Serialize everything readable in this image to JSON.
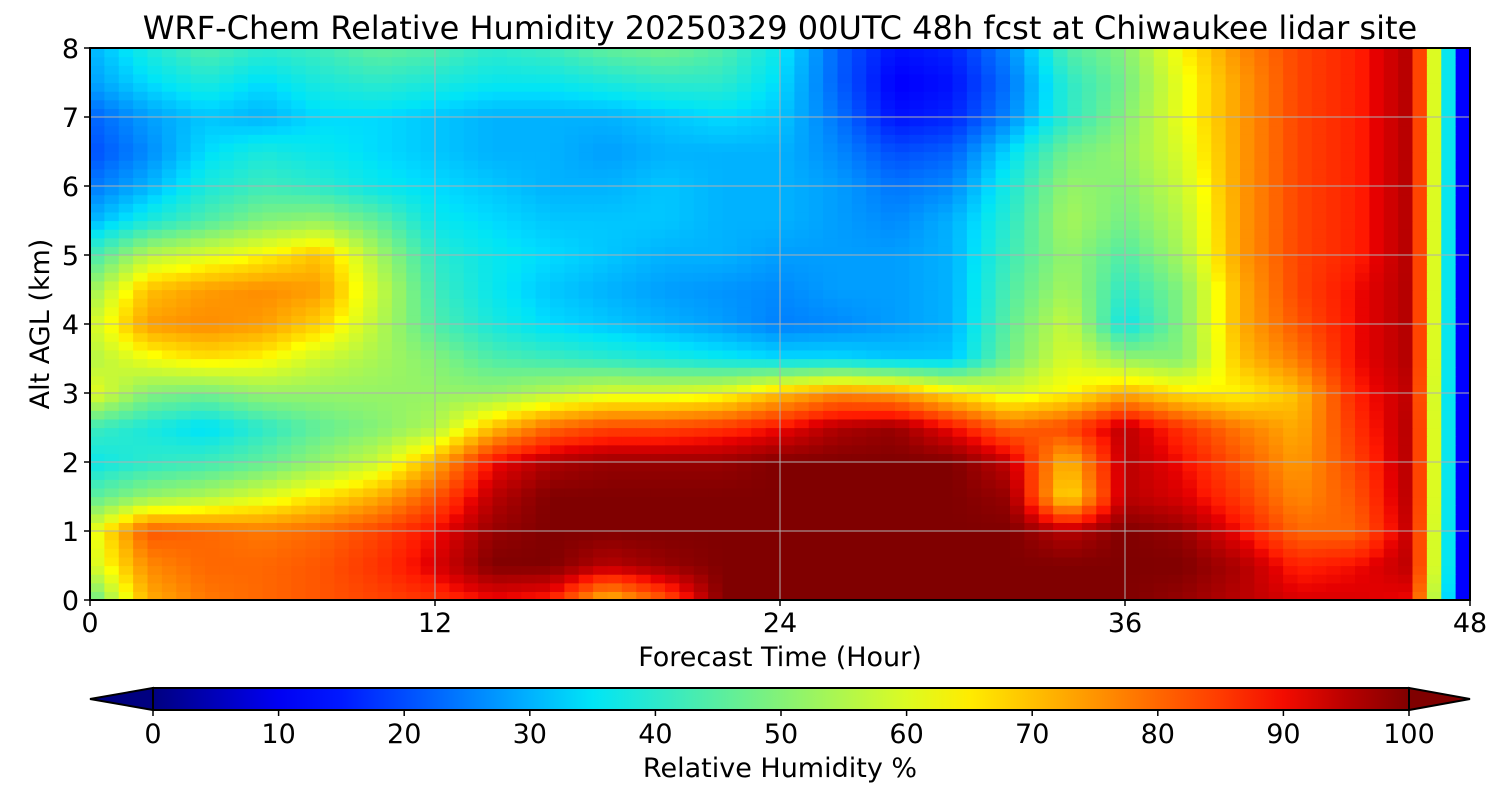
{
  "chart_data": {
    "type": "heatmap",
    "title": "WRF-Chem Relative Humidity 20250329 00UTC 48h fcst at Chiwaukee lidar site",
    "xlabel": "Forecast Time (Hour)",
    "ylabel": "Alt AGL (km)",
    "xlim": [
      0,
      48
    ],
    "ylim": [
      0,
      8
    ],
    "xticks": [
      0,
      12,
      24,
      36,
      48
    ],
    "yticks": [
      0,
      1,
      2,
      3,
      4,
      5,
      6,
      7,
      8
    ],
    "grid": true,
    "colormap": "jet",
    "colorbar": {
      "label": "Relative Humidity %",
      "range": [
        0,
        100
      ],
      "ticks": [
        0,
        10,
        20,
        30,
        40,
        50,
        60,
        70,
        80,
        90,
        100
      ],
      "extend": "both",
      "orientation": "horizontal",
      "placement": "bottom"
    },
    "x": [
      0,
      2,
      4,
      6,
      8,
      10,
      12,
      14,
      16,
      18,
      20,
      22,
      24,
      26,
      28,
      30,
      32,
      34,
      36,
      38,
      40,
      42,
      44,
      46,
      48
    ],
    "y": [
      0,
      0.5,
      1,
      1.5,
      2,
      2.5,
      3,
      3.5,
      4,
      4.5,
      5,
      5.5,
      6,
      6.5,
      7,
      7.5,
      8
    ],
    "z": [
      [
        45,
        72,
        78,
        80,
        82,
        84,
        86,
        90,
        88,
        70,
        82,
        100,
        100,
        100,
        100,
        100,
        100,
        100,
        100,
        98,
        95,
        92,
        92,
        90,
        0
      ],
      [
        58,
        76,
        80,
        80,
        82,
        86,
        92,
        100,
        100,
        95,
        98,
        100,
        100,
        100,
        100,
        100,
        100,
        100,
        100,
        100,
        96,
        88,
        90,
        95,
        0
      ],
      [
        60,
        82,
        80,
        78,
        80,
        84,
        90,
        98,
        100,
        100,
        100,
        100,
        100,
        100,
        100,
        100,
        100,
        95,
        100,
        98,
        90,
        80,
        80,
        95,
        0
      ],
      [
        45,
        52,
        55,
        60,
        66,
        72,
        82,
        95,
        100,
        100,
        100,
        100,
        100,
        100,
        100,
        100,
        98,
        65,
        95,
        92,
        85,
        76,
        82,
        96,
        0
      ],
      [
        36,
        40,
        42,
        46,
        52,
        58,
        72,
        90,
        96,
        98,
        98,
        98,
        100,
        100,
        100,
        100,
        94,
        70,
        95,
        90,
        82,
        74,
        84,
        96,
        0
      ],
      [
        42,
        38,
        34,
        40,
        46,
        50,
        55,
        70,
        80,
        84,
        84,
        86,
        90,
        96,
        98,
        90,
        80,
        84,
        95,
        86,
        78,
        72,
        86,
        96,
        0
      ],
      [
        62,
        50,
        48,
        52,
        52,
        52,
        52,
        52,
        56,
        60,
        60,
        62,
        70,
        76,
        74,
        66,
        60,
        64,
        72,
        66,
        64,
        70,
        88,
        95,
        0
      ],
      [
        55,
        62,
        66,
        64,
        58,
        54,
        50,
        44,
        42,
        40,
        38,
        36,
        34,
        34,
        32,
        32,
        48,
        60,
        52,
        50,
        70,
        78,
        90,
        96,
        0
      ],
      [
        58,
        74,
        76,
        74,
        68,
        56,
        44,
        38,
        34,
        32,
        30,
        28,
        25,
        26,
        28,
        30,
        46,
        58,
        36,
        50,
        72,
        82,
        90,
        96,
        0
      ],
      [
        52,
        70,
        74,
        76,
        74,
        58,
        42,
        36,
        32,
        30,
        28,
        27,
        26,
        28,
        28,
        30,
        44,
        54,
        40,
        50,
        72,
        84,
        90,
        96,
        0
      ],
      [
        42,
        56,
        60,
        64,
        70,
        54,
        40,
        36,
        34,
        32,
        30,
        30,
        28,
        28,
        28,
        30,
        42,
        52,
        44,
        54,
        74,
        84,
        88,
        96,
        0
      ],
      [
        30,
        38,
        44,
        50,
        52,
        46,
        36,
        34,
        32,
        32,
        32,
        30,
        30,
        28,
        26,
        30,
        40,
        54,
        48,
        56,
        74,
        84,
        88,
        96,
        0
      ],
      [
        24,
        30,
        38,
        42,
        40,
        36,
        34,
        32,
        30,
        30,
        32,
        30,
        30,
        28,
        24,
        26,
        38,
        52,
        50,
        58,
        74,
        84,
        88,
        96,
        0
      ],
      [
        20,
        26,
        34,
        38,
        36,
        34,
        32,
        30,
        30,
        28,
        30,
        30,
        30,
        26,
        20,
        22,
        34,
        48,
        52,
        60,
        74,
        84,
        88,
        96,
        0
      ],
      [
        22,
        28,
        32,
        30,
        34,
        34,
        32,
        30,
        30,
        30,
        32,
        34,
        32,
        24,
        14,
        16,
        26,
        40,
        50,
        62,
        74,
        84,
        88,
        96,
        0
      ],
      [
        28,
        34,
        38,
        34,
        38,
        40,
        38,
        36,
        36,
        38,
        40,
        40,
        34,
        22,
        12,
        14,
        24,
        40,
        48,
        62,
        74,
        84,
        88,
        96,
        0
      ],
      [
        30,
        38,
        44,
        40,
        42,
        46,
        44,
        40,
        42,
        46,
        48,
        44,
        36,
        22,
        14,
        16,
        26,
        44,
        50,
        64,
        76,
        84,
        88,
        96,
        0
      ]
    ]
  }
}
